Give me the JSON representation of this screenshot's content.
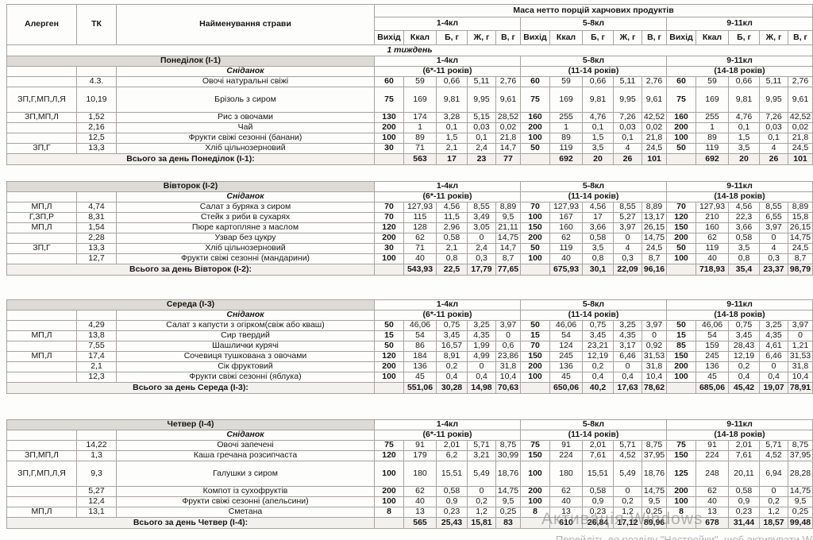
{
  "table": {
    "header": {
      "allergen": "Алерген",
      "tk": "ТК",
      "dish": "Найменування страви",
      "mass_title": "Маса нетто порцій харчових продуктів",
      "groups": [
        {
          "cls": "1-4кл",
          "age": "(6*-11 років)"
        },
        {
          "cls": "5-8кл",
          "age": "(11-14 років)"
        },
        {
          "cls": "9-11кл",
          "age": "(14-18 років)"
        }
      ],
      "cols": [
        "Вихід",
        "Ккал",
        "Б, г",
        "Ж, г",
        "В, г"
      ]
    },
    "week_label": "1 тиждень",
    "days": [
      {
        "name": "Понеділок (I-1)",
        "meal": "Сніданок",
        "total_label": "Всього за день Понеділок (I-1):",
        "rows": [
          {
            "allergen": "",
            "tk": "4.3.",
            "dish": "Овочі натуральні свіжі",
            "tall": false,
            "g": [
              [
                "60",
                "59",
                "0,66",
                "5,11",
                "2,76"
              ],
              [
                "60",
                "59",
                "0,66",
                "5,11",
                "2,76"
              ],
              [
                "60",
                "59",
                "0,66",
                "5,11",
                "2,76"
              ]
            ]
          },
          {
            "allergen": "ЗП,Г,МП,Л,Я",
            "tk": "10,19",
            "dish": "Брізоль з сиром",
            "tall": true,
            "g": [
              [
                "75",
                "169",
                "9,81",
                "9,95",
                "9,61"
              ],
              [
                "75",
                "169",
                "9,81",
                "9,95",
                "9,61"
              ],
              [
                "75",
                "169",
                "9,81",
                "9,95",
                "9,61"
              ]
            ]
          },
          {
            "allergen": "ЗП,МП,Л",
            "tk": "1,52",
            "dish": "Рис з овочами",
            "tall": false,
            "g": [
              [
                "130",
                "174",
                "3,28",
                "5,15",
                "28,52"
              ],
              [
                "160",
                "255",
                "4,76",
                "7,26",
                "42,52"
              ],
              [
                "160",
                "255",
                "4,76",
                "7,26",
                "42,52"
              ]
            ]
          },
          {
            "allergen": "",
            "tk": "2,16",
            "dish": "Чай",
            "tall": false,
            "g": [
              [
                "200",
                "1",
                "0,1",
                "0,03",
                "0,02"
              ],
              [
                "200",
                "1",
                "0,1",
                "0,03",
                "0,02"
              ],
              [
                "200",
                "1",
                "0,1",
                "0,03",
                "0,02"
              ]
            ]
          },
          {
            "allergen": "",
            "tk": "12,5",
            "dish": "Фрукти свіжі сезонні (банани)",
            "tall": false,
            "g": [
              [
                "100",
                "89",
                "1,5",
                "0,1",
                "21,8"
              ],
              [
                "100",
                "89",
                "1,5",
                "0,1",
                "21,8"
              ],
              [
                "100",
                "89",
                "1,5",
                "0,1",
                "21,8"
              ]
            ]
          },
          {
            "allergen": "ЗП,Г",
            "tk": "13,3",
            "dish": "Хліб цільнозерновий",
            "tall": false,
            "g": [
              [
                "30",
                "71",
                "2,1",
                "2,4",
                "14,7"
              ],
              [
                "50",
                "119",
                "3,5",
                "4",
                "24,5"
              ],
              [
                "50",
                "119",
                "3,5",
                "4",
                "24,5"
              ]
            ]
          }
        ],
        "totals": [
          [
            "",
            "563",
            "17",
            "23",
            "77"
          ],
          [
            "",
            "692",
            "20",
            "26",
            "101"
          ],
          [
            "",
            "692",
            "20",
            "26",
            "101"
          ]
        ]
      },
      {
        "name": "Вівторок (I-2)",
        "meal": "Сніданок",
        "total_label": "Всього за день Вівторок (I-2):",
        "rows": [
          {
            "allergen": "МП,Л",
            "tk": "4,74",
            "dish": "Салат з буряка з сиром",
            "tall": false,
            "g": [
              [
                "70",
                "127,93",
                "4,56",
                "8,55",
                "8,89"
              ],
              [
                "70",
                "127,93",
                "4,56",
                "8,55",
                "8,89"
              ],
              [
                "70",
                "127,93",
                "4,56",
                "8,55",
                "8,89"
              ]
            ]
          },
          {
            "allergen": "Г,ЗП,Р",
            "tk": "8,31",
            "dish": "Стейк з риби в сухарях",
            "tall": false,
            "g": [
              [
                "70",
                "115",
                "11,5",
                "3,49",
                "9,5"
              ],
              [
                "100",
                "167",
                "17",
                "5,27",
                "13,17"
              ],
              [
                "120",
                "210",
                "22,3",
                "6,55",
                "15,8"
              ]
            ]
          },
          {
            "allergen": "МП,Л",
            "tk": "1,54",
            "dish": "Пюре картопляне з маслом",
            "tall": false,
            "g": [
              [
                "120",
                "128",
                "2,96",
                "3,05",
                "21,11"
              ],
              [
                "150",
                "160",
                "3,66",
                "3,97",
                "26,15"
              ],
              [
                "150",
                "160",
                "3,66",
                "3,97",
                "26,15"
              ]
            ]
          },
          {
            "allergen": "",
            "tk": "2,28",
            "dish": "Узвар без цукру",
            "tall": false,
            "g": [
              [
                "200",
                "62",
                "0,58",
                "0",
                "14,75"
              ],
              [
                "200",
                "62",
                "0,58",
                "0",
                "14,75"
              ],
              [
                "200",
                "62",
                "0,58",
                "0",
                "14,75"
              ]
            ]
          },
          {
            "allergen": "ЗП,Г",
            "tk": "13,3",
            "dish": "Хліб цільнозерновий",
            "tall": false,
            "g": [
              [
                "30",
                "71",
                "2,1",
                "2,4",
                "14,7"
              ],
              [
                "50",
                "119",
                "3,5",
                "4",
                "24,5"
              ],
              [
                "50",
                "119",
                "3,5",
                "4",
                "24,5"
              ]
            ]
          },
          {
            "allergen": "",
            "tk": "12,7",
            "dish": "Фрукти свіжі сезонні (мандарини)",
            "tall": false,
            "g": [
              [
                "100",
                "40",
                "0,8",
                "0,3",
                "8,7"
              ],
              [
                "100",
                "40",
                "0,8",
                "0,3",
                "8,7"
              ],
              [
                "100",
                "40",
                "0,8",
                "0,3",
                "8,7"
              ]
            ]
          }
        ],
        "totals": [
          [
            "",
            "543,93",
            "22,5",
            "17,79",
            "77,65"
          ],
          [
            "",
            "675,93",
            "30,1",
            "22,09",
            "96,16"
          ],
          [
            "",
            "718,93",
            "35,4",
            "23,37",
            "98,79"
          ]
        ]
      },
      {
        "name": "Середа (I-3)",
        "meal": "Сніданок",
        "total_label": "Всього за день Середа (I-3):",
        "rows": [
          {
            "allergen": "",
            "tk": "4,29",
            "dish": "Салат з капусти з огірком(свіж або кваш)",
            "tall": false,
            "g": [
              [
                "50",
                "46,06",
                "0,75",
                "3,25",
                "3,97"
              ],
              [
                "50",
                "46,06",
                "0,75",
                "3,25",
                "3,97"
              ],
              [
                "50",
                "46,06",
                "0,75",
                "3,25",
                "3,97"
              ]
            ]
          },
          {
            "allergen": "МП,Л",
            "tk": "13,8",
            "dish": "Сир твердий",
            "tall": false,
            "g": [
              [
                "15",
                "54",
                "3,45",
                "4,35",
                "0"
              ],
              [
                "15",
                "54",
                "3,45",
                "4,35",
                "0"
              ],
              [
                "15",
                "54",
                "3,45",
                "4,35",
                "0"
              ]
            ]
          },
          {
            "allergen": "",
            "tk": "7,55",
            "dish": "Шашлички курячі",
            "tall": false,
            "g": [
              [
                "50",
                "86",
                "16,57",
                "1,99",
                "0,6"
              ],
              [
                "70",
                "124",
                "23,21",
                "3,17",
                "0,92"
              ],
              [
                "85",
                "159",
                "28,43",
                "4,61",
                "1,21"
              ]
            ]
          },
          {
            "allergen": "МП,Л",
            "tk": "17,4",
            "dish": "Сочевиця тушкована з овочами",
            "tall": false,
            "g": [
              [
                "120",
                "184",
                "8,91",
                "4,99",
                "23,86"
              ],
              [
                "150",
                "245",
                "12,19",
                "6,46",
                "31,53"
              ],
              [
                "150",
                "245",
                "12,19",
                "6,46",
                "31,53"
              ]
            ]
          },
          {
            "allergen": "",
            "tk": "2,1",
            "dish": "Сік фруктовий",
            "tall": false,
            "g": [
              [
                "200",
                "136",
                "0,2",
                "0",
                "31,8"
              ],
              [
                "200",
                "136",
                "0,2",
                "0",
                "31,8"
              ],
              [
                "200",
                "136",
                "0,2",
                "0",
                "31,8"
              ]
            ]
          },
          {
            "allergen": "",
            "tk": "12,3",
            "dish": "Фрукти свіжі сезонні (яблука)",
            "tall": false,
            "g": [
              [
                "100",
                "45",
                "0,4",
                "0,4",
                "10,4"
              ],
              [
                "100",
                "45",
                "0,4",
                "0,4",
                "10,4"
              ],
              [
                "100",
                "45",
                "0,4",
                "0,4",
                "10,4"
              ]
            ]
          }
        ],
        "totals": [
          [
            "",
            "551,06",
            "30,28",
            "14,98",
            "70,63"
          ],
          [
            "",
            "650,06",
            "40,2",
            "17,63",
            "78,62"
          ],
          [
            "",
            "685,06",
            "45,42",
            "19,07",
            "78,91"
          ]
        ]
      },
      {
        "name": "Четвер (I-4)",
        "meal": "Сніданок",
        "total_label": "Всього за день Четвер (I-4):",
        "rows": [
          {
            "allergen": "",
            "tk": "14,22",
            "dish": "Овочі запечені",
            "tall": false,
            "g": [
              [
                "75",
                "91",
                "2,01",
                "5,71",
                "8,75"
              ],
              [
                "75",
                "91",
                "2,01",
                "5,71",
                "8,75"
              ],
              [
                "75",
                "91",
                "2,01",
                "5,71",
                "8,75"
              ]
            ]
          },
          {
            "allergen": "ЗП,МП,Л",
            "tk": "1,3",
            "dish": "Каша гречана розсипчаста",
            "tall": false,
            "g": [
              [
                "120",
                "179",
                "6,2",
                "3,21",
                "30,99"
              ],
              [
                "150",
                "224",
                "7,61",
                "4,52",
                "37,95"
              ],
              [
                "150",
                "224",
                "7,61",
                "4,52",
                "37,95"
              ]
            ]
          },
          {
            "allergen": "ЗП,Г,МП,Л,Я",
            "tk": "9,3",
            "dish": "Галушки з сиром",
            "tall": true,
            "g": [
              [
                "100",
                "180",
                "15,51",
                "5,49",
                "18,76"
              ],
              [
                "100",
                "180",
                "15,51",
                "5,49",
                "18,76"
              ],
              [
                "125",
                "248",
                "20,11",
                "6,94",
                "28,28"
              ]
            ]
          },
          {
            "allergen": "",
            "tk": "5,27",
            "dish": "Компот із сухофруктів",
            "tall": false,
            "g": [
              [
                "200",
                "62",
                "0,58",
                "0",
                "14,75"
              ],
              [
                "200",
                "62",
                "0,58",
                "0",
                "14,75"
              ],
              [
                "200",
                "62",
                "0,58",
                "0",
                "14,75"
              ]
            ]
          },
          {
            "allergen": "",
            "tk": "12,4",
            "dish": "Фрукти свіжі сезонні (апельсини)",
            "tall": false,
            "g": [
              [
                "100",
                "40",
                "0,9",
                "0,2",
                "9,5"
              ],
              [
                "100",
                "40",
                "0,9",
                "0,2",
                "9,5"
              ],
              [
                "100",
                "40",
                "0,9",
                "0,2",
                "9,5"
              ]
            ]
          },
          {
            "allergen": "МП,Л",
            "tk": "13,1",
            "dish": "Сметана",
            "tall": false,
            "g": [
              [
                "8",
                "13",
                "0,23",
                "1,2",
                "0,25"
              ],
              [
                "8",
                "13",
                "0,23",
                "1,2",
                "0,25"
              ],
              [
                "8",
                "13",
                "0,23",
                "1,2",
                "0,25"
              ]
            ]
          }
        ],
        "totals": [
          [
            "",
            "565",
            "25,43",
            "15,81",
            "83"
          ],
          [
            "",
            "610",
            "26,84",
            "17,12",
            "89,96"
          ],
          [
            "",
            "678",
            "31,44",
            "18,57",
            "99,48"
          ]
        ]
      }
    ]
  },
  "watermark": {
    "line1": "Активація Windows",
    "line2": "Перейдіть до розділу \"Настройки\", щоб активувати Windows."
  },
  "colors": {
    "day_band": "#dcdbd6",
    "total_row": "#f2f1ed",
    "grid_border": "#a8a49e",
    "watermark": "#7d7d7a"
  }
}
